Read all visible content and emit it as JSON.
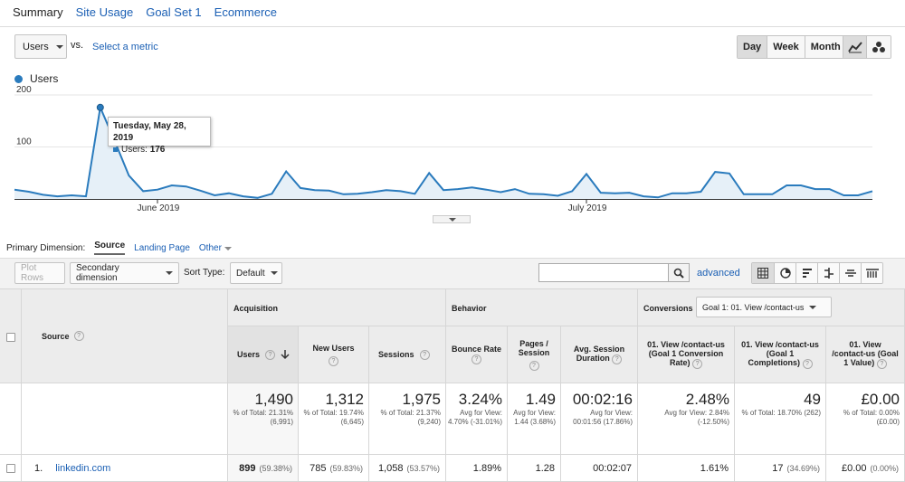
{
  "tabs": [
    "Summary",
    "Site Usage",
    "Goal Set 1",
    "Ecommerce"
  ],
  "metric_select": "Users",
  "vs_label": "vs.",
  "select_metric": "Select a metric",
  "period_buttons": [
    "Day",
    "Week",
    "Month"
  ],
  "legend_label": "Users",
  "colors": {
    "series": "#2a7bbd",
    "fill": "#e6f0f8",
    "link": "#1a5fb4"
  },
  "chart_data": {
    "type": "area",
    "series": [
      {
        "name": "Users",
        "values": [
          18,
          14,
          8,
          5,
          7,
          5,
          176,
          112,
          45,
          15,
          18,
          26,
          24,
          16,
          7,
          11,
          5,
          2,
          10,
          53,
          21,
          17,
          16,
          9,
          10,
          13,
          17,
          15,
          10,
          50,
          17,
          19,
          22,
          18,
          13,
          19,
          10,
          9,
          6,
          15,
          48,
          12,
          11,
          12,
          5,
          3,
          11,
          11,
          14,
          52,
          49,
          9,
          9,
          9,
          26,
          26,
          19,
          19,
          7,
          7,
          15
        ]
      }
    ],
    "x_tick_labels": [
      "June 2019",
      "July 2019"
    ],
    "y_tick_labels": [
      "100",
      "200"
    ],
    "ylim": [
      0,
      200
    ],
    "grid": true
  },
  "tooltip": {
    "date": "Tuesday, May 28, 2019",
    "label": "Users:",
    "value": "176"
  },
  "primary_dimension": {
    "label": "Primary Dimension:",
    "current": "Source",
    "options": [
      "Landing Page",
      "Other"
    ]
  },
  "toolbar": {
    "plot_rows": "Plot Rows",
    "secondary": "Secondary dimension",
    "sort_label": "Sort Type:",
    "sort_value": "Default",
    "advanced": "advanced"
  },
  "table": {
    "source_header": "Source",
    "groups": {
      "acquisition": "Acquisition",
      "behavior": "Behavior",
      "conversions": "Conversions",
      "goal_select": "Goal 1: 01. View /contact-us"
    },
    "columns": {
      "users": "Users",
      "new_users": "New Users",
      "sessions": "Sessions",
      "bounce": "Bounce Rate",
      "pages": "Pages / Session",
      "duration": "Avg. Session Duration",
      "conv_rate": "01. View /contact-us (Goal 1 Conversion Rate)",
      "completions": "01. View /contact-us (Goal 1 Completions)",
      "value": "01. View /contact-us (Goal 1 Value)"
    },
    "totals": {
      "users": {
        "value": "1,490",
        "sub": "% of Total: 21.31% (6,991)"
      },
      "new_users": {
        "value": "1,312",
        "sub": "% of Total: 19.74% (6,645)"
      },
      "sessions": {
        "value": "1,975",
        "sub": "% of Total: 21.37% (9,240)"
      },
      "bounce": {
        "value": "3.24%",
        "sub": "Avg for View: 4.70% (-31.01%)"
      },
      "pages": {
        "value": "1.49",
        "sub": "Avg for View: 1.44 (3.68%)"
      },
      "duration": {
        "value": "00:02:16",
        "sub": "Avg for View: 00:01:56 (17.86%)"
      },
      "conv_rate": {
        "value": "2.48%",
        "sub": "Avg for View: 2.84% (-12.50%)"
      },
      "completions": {
        "value": "49",
        "sub": "% of Total: 18.70% (262)"
      },
      "value": {
        "value": "£0.00",
        "sub": "% of Total: 0.00% (£0.00)"
      }
    },
    "rows": [
      {
        "index": "1.",
        "source": "linkedin.com",
        "users": "899",
        "users_pct": "(59.38%)",
        "new_users": "785",
        "new_users_pct": "(59.83%)",
        "sessions": "1,058",
        "sessions_pct": "(53.57%)",
        "bounce": "1.89%",
        "pages": "1.28",
        "duration": "00:02:07",
        "conv_rate": "1.61%",
        "completions": "17",
        "completions_pct": "(34.69%)",
        "value": "£0.00",
        "value_pct": "(0.00%)"
      }
    ]
  }
}
